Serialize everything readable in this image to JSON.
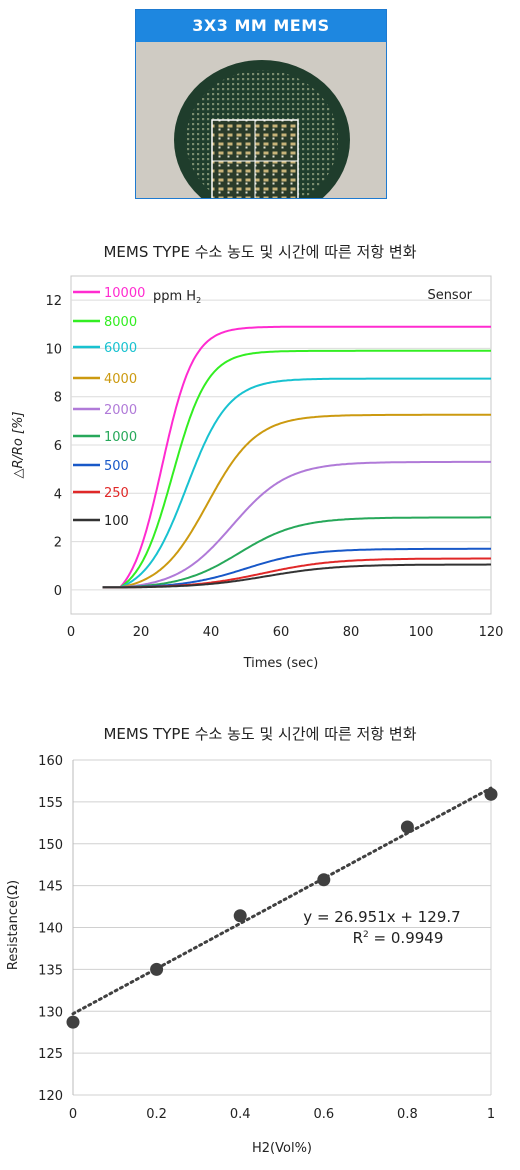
{
  "photo": {
    "banner": "3X3 MM MEMS",
    "colors": {
      "banner": "#1e87e0",
      "wafer": "#1f3d2c",
      "background": "#cfcbc3"
    }
  },
  "chart_data": [
    {
      "type": "line",
      "title": "MEMS TYPE 수소 농도 및 시간에 따른 저항 변화",
      "xlabel": "Times (sec)",
      "ylabel": "△R/Ro [%]",
      "xlim": [
        0,
        120
      ],
      "ylim": [
        -1,
        13
      ],
      "xticks": [
        0,
        20,
        40,
        60,
        80,
        100,
        120
      ],
      "yticks": [
        0,
        2,
        4,
        6,
        8,
        10,
        12
      ],
      "grid": "horizontal",
      "legend_position": "top-left",
      "legend_unit": "ppm H",
      "legend_unit_sub": "2",
      "annotation": "Sensor",
      "x_start": 9,
      "baseline": 0.1,
      "onset": 14,
      "series": [
        {
          "name": "10000",
          "color": "#ff2bd0",
          "final": 10.9,
          "midpoint": 26,
          "rise": 4.5
        },
        {
          "name": "8000",
          "color": "#33ee22",
          "final": 9.9,
          "midpoint": 29,
          "rise": 5.0
        },
        {
          "name": "6000",
          "color": "#18c2d0",
          "final": 8.75,
          "midpoint": 33,
          "rise": 6.0
        },
        {
          "name": "4000",
          "color": "#cc9a10",
          "final": 7.25,
          "midpoint": 39,
          "rise": 7.0
        },
        {
          "name": "2000",
          "color": "#b07ad8",
          "final": 5.3,
          "midpoint": 46,
          "rise": 8.0
        },
        {
          "name": "1000",
          "color": "#27a85a",
          "final": 3.0,
          "midpoint": 48,
          "rise": 8.5
        },
        {
          "name": "500",
          "color": "#1858c8",
          "final": 1.7,
          "midpoint": 50,
          "rise": 9.0
        },
        {
          "name": "250",
          "color": "#e02828",
          "final": 1.3,
          "midpoint": 55,
          "rise": 10.0
        },
        {
          "name": "100",
          "color": "#333333",
          "final": 1.05,
          "midpoint": 56,
          "rise": 10.0
        }
      ]
    },
    {
      "type": "scatter",
      "title": "MEMS TYPE 수소 농도 및 시간에 따른 저항 변화",
      "xlabel": "H2(Vol%)",
      "ylabel": "Resistance(Ω)",
      "xlim": [
        0,
        1
      ],
      "ylim": [
        120,
        160
      ],
      "xticks": [
        0,
        0.2,
        0.4,
        0.6,
        0.8,
        1
      ],
      "yticks": [
        120,
        125,
        130,
        135,
        140,
        145,
        150,
        155,
        160
      ],
      "grid": "horizontal",
      "x": [
        0,
        0.2,
        0.4,
        0.6,
        0.8,
        1
      ],
      "y": [
        128.7,
        135.0,
        141.4,
        145.7,
        152.0,
        155.9
      ],
      "trendline": {
        "slope": 26.951,
        "intercept": 129.7,
        "style": "dotted"
      },
      "equation": "y = 26.951x + 129.7",
      "r2_prefix": "R",
      "r2_sup": "2",
      "r2_suffix": " = 0.9949",
      "marker_color": "#404040"
    }
  ]
}
